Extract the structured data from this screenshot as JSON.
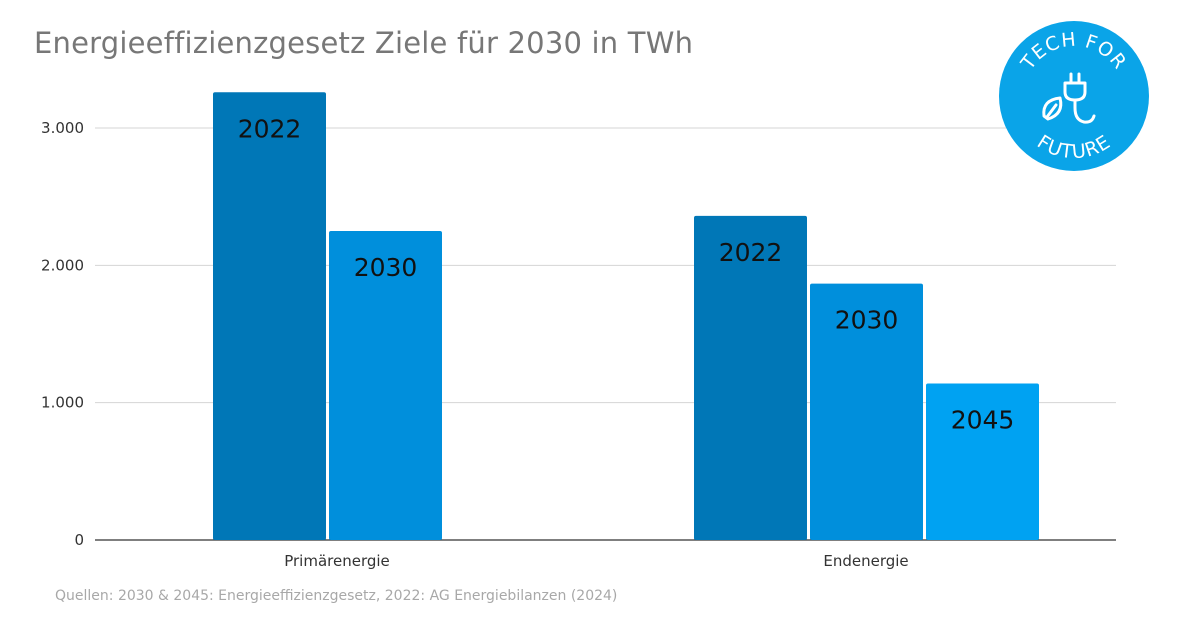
{
  "chart_data": {
    "type": "bar",
    "title": "Energieeffizienzgesetz Ziele für 2030 in TWh",
    "categories": [
      "Primärenergie",
      "Endenergie"
    ],
    "groups": [
      {
        "category": "Primärenergie",
        "bars": [
          {
            "label": "2022",
            "value": 3260
          },
          {
            "label": "2030",
            "value": 2250
          }
        ]
      },
      {
        "category": "Endenergie",
        "bars": [
          {
            "label": "2022",
            "value": 2360
          },
          {
            "label": "2030",
            "value": 1867
          },
          {
            "label": "2045",
            "value": 1140
          }
        ]
      }
    ],
    "y_ticks": [
      {
        "value": 0,
        "label": "0"
      },
      {
        "value": 1000,
        "label": "1.000"
      },
      {
        "value": 2000,
        "label": "2.000"
      },
      {
        "value": 3000,
        "label": "3.000"
      }
    ],
    "ylim": [
      0,
      3500
    ],
    "grid": true,
    "legend": "none",
    "colors": {
      "2022": "#0077b7",
      "2030": "#008fdc",
      "2045": "#00a2f2"
    },
    "grid_color": "#d4d4d4",
    "axis_color": "#333333"
  },
  "source": "Quellen: 2030 & 2045: Energieeffizienzgesetz, 2022: AG Energiebilanzen (2024)",
  "logo": {
    "text_top": "TECH FOR",
    "text_bottom": "FUTURE",
    "color": "#0aa4e8",
    "icon": "plug-leaf-icon"
  }
}
